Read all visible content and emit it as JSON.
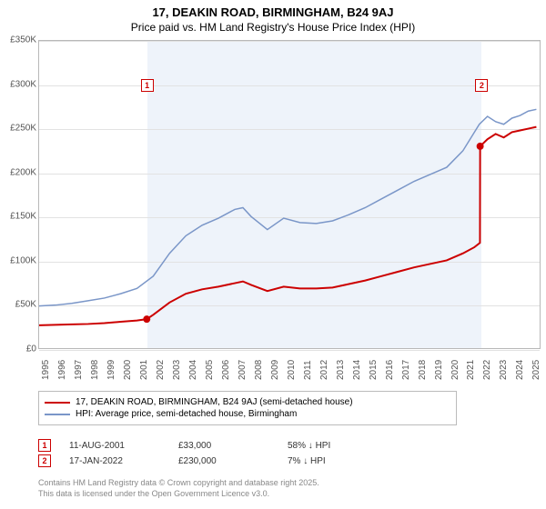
{
  "titles": {
    "line1": "17, DEAKIN ROAD, BIRMINGHAM, B24 9AJ",
    "line2": "Price paid vs. HM Land Registry's House Price Index (HPI)"
  },
  "chart": {
    "type": "line",
    "xlim": [
      1995,
      2025.7
    ],
    "ylim": [
      0,
      350000
    ],
    "y_ticks": [
      0,
      50000,
      100000,
      150000,
      200000,
      250000,
      300000,
      350000
    ],
    "y_tick_labels": [
      "£0",
      "£50K",
      "£100K",
      "£150K",
      "£200K",
      "£250K",
      "£300K",
      "£350K"
    ],
    "x_ticks": [
      1995,
      1996,
      1997,
      1998,
      1999,
      2000,
      2001,
      2002,
      2003,
      2004,
      2005,
      2006,
      2007,
      2008,
      2009,
      2010,
      2011,
      2012,
      2013,
      2014,
      2015,
      2016,
      2017,
      2018,
      2019,
      2020,
      2021,
      2022,
      2023,
      2024,
      2025
    ],
    "grid_color": "#e2e2e2",
    "border_color": "#b8b8b8",
    "background_color": "#ffffff",
    "shaded_band": {
      "from": 2001.6,
      "to": 2022.05,
      "color": "#eef3fa"
    },
    "series": [
      {
        "name": "17, DEAKIN ROAD, BIRMINGHAM, B24 9AJ (semi-detached house)",
        "color": "#cc0000",
        "width": 2,
        "points": [
          [
            1995,
            26000
          ],
          [
            1996,
            26500
          ],
          [
            1997,
            27000
          ],
          [
            1998,
            27500
          ],
          [
            1999,
            28500
          ],
          [
            2000,
            30000
          ],
          [
            2001,
            31500
          ],
          [
            2001.6,
            33000
          ],
          [
            2002,
            38000
          ],
          [
            2003,
            52000
          ],
          [
            2004,
            62000
          ],
          [
            2005,
            67000
          ],
          [
            2006,
            70000
          ],
          [
            2007,
            74000
          ],
          [
            2007.5,
            76000
          ],
          [
            2008,
            72000
          ],
          [
            2009,
            65000
          ],
          [
            2010,
            70000
          ],
          [
            2011,
            68000
          ],
          [
            2012,
            68000
          ],
          [
            2013,
            69000
          ],
          [
            2014,
            73000
          ],
          [
            2015,
            77000
          ],
          [
            2016,
            82000
          ],
          [
            2017,
            87000
          ],
          [
            2018,
            92000
          ],
          [
            2019,
            96000
          ],
          [
            2020,
            100000
          ],
          [
            2021,
            108000
          ],
          [
            2021.7,
            115000
          ],
          [
            2022.04,
            120000
          ],
          [
            2022.05,
            230000
          ],
          [
            2022.5,
            238000
          ],
          [
            2023,
            244000
          ],
          [
            2023.5,
            240000
          ],
          [
            2024,
            246000
          ],
          [
            2024.5,
            248000
          ],
          [
            2025,
            250000
          ],
          [
            2025.5,
            252000
          ]
        ]
      },
      {
        "name": "HPI: Average price, semi-detached house, Birmingham",
        "color": "#7a96c8",
        "width": 1.5,
        "points": [
          [
            1995,
            48000
          ],
          [
            1996,
            49000
          ],
          [
            1997,
            51000
          ],
          [
            1998,
            54000
          ],
          [
            1999,
            57000
          ],
          [
            2000,
            62000
          ],
          [
            2001,
            68000
          ],
          [
            2002,
            82000
          ],
          [
            2003,
            108000
          ],
          [
            2004,
            128000
          ],
          [
            2005,
            140000
          ],
          [
            2006,
            148000
          ],
          [
            2007,
            158000
          ],
          [
            2007.5,
            160000
          ],
          [
            2008,
            150000
          ],
          [
            2009,
            135000
          ],
          [
            2010,
            148000
          ],
          [
            2011,
            143000
          ],
          [
            2012,
            142000
          ],
          [
            2013,
            145000
          ],
          [
            2014,
            152000
          ],
          [
            2015,
            160000
          ],
          [
            2016,
            170000
          ],
          [
            2017,
            180000
          ],
          [
            2018,
            190000
          ],
          [
            2019,
            198000
          ],
          [
            2020,
            206000
          ],
          [
            2021,
            225000
          ],
          [
            2022,
            255000
          ],
          [
            2022.5,
            264000
          ],
          [
            2023,
            258000
          ],
          [
            2023.5,
            255000
          ],
          [
            2024,
            262000
          ],
          [
            2024.5,
            265000
          ],
          [
            2025,
            270000
          ],
          [
            2025.5,
            272000
          ]
        ]
      }
    ],
    "markers": [
      {
        "label": "1",
        "x": 2001.6,
        "y_box": 300000,
        "point_y": 33000
      },
      {
        "label": "2",
        "x": 2022.05,
        "y_box": 300000,
        "point_y": 230000
      }
    ]
  },
  "legend": {
    "rows": [
      {
        "color": "#cc0000",
        "label": "17, DEAKIN ROAD, BIRMINGHAM, B24 9AJ (semi-detached house)"
      },
      {
        "color": "#7a96c8",
        "label": "HPI: Average price, semi-detached house, Birmingham"
      }
    ]
  },
  "interactions": [
    {
      "num": "1",
      "date": "11-AUG-2001",
      "price": "£33,000",
      "delta": "58% ↓ HPI"
    },
    {
      "num": "2",
      "date": "17-JAN-2022",
      "price": "£230,000",
      "delta": "7% ↓ HPI"
    }
  ],
  "footer": {
    "line1": "Contains HM Land Registry data © Crown copyright and database right 2025.",
    "line2": "This data is licensed under the Open Government Licence v3.0."
  }
}
